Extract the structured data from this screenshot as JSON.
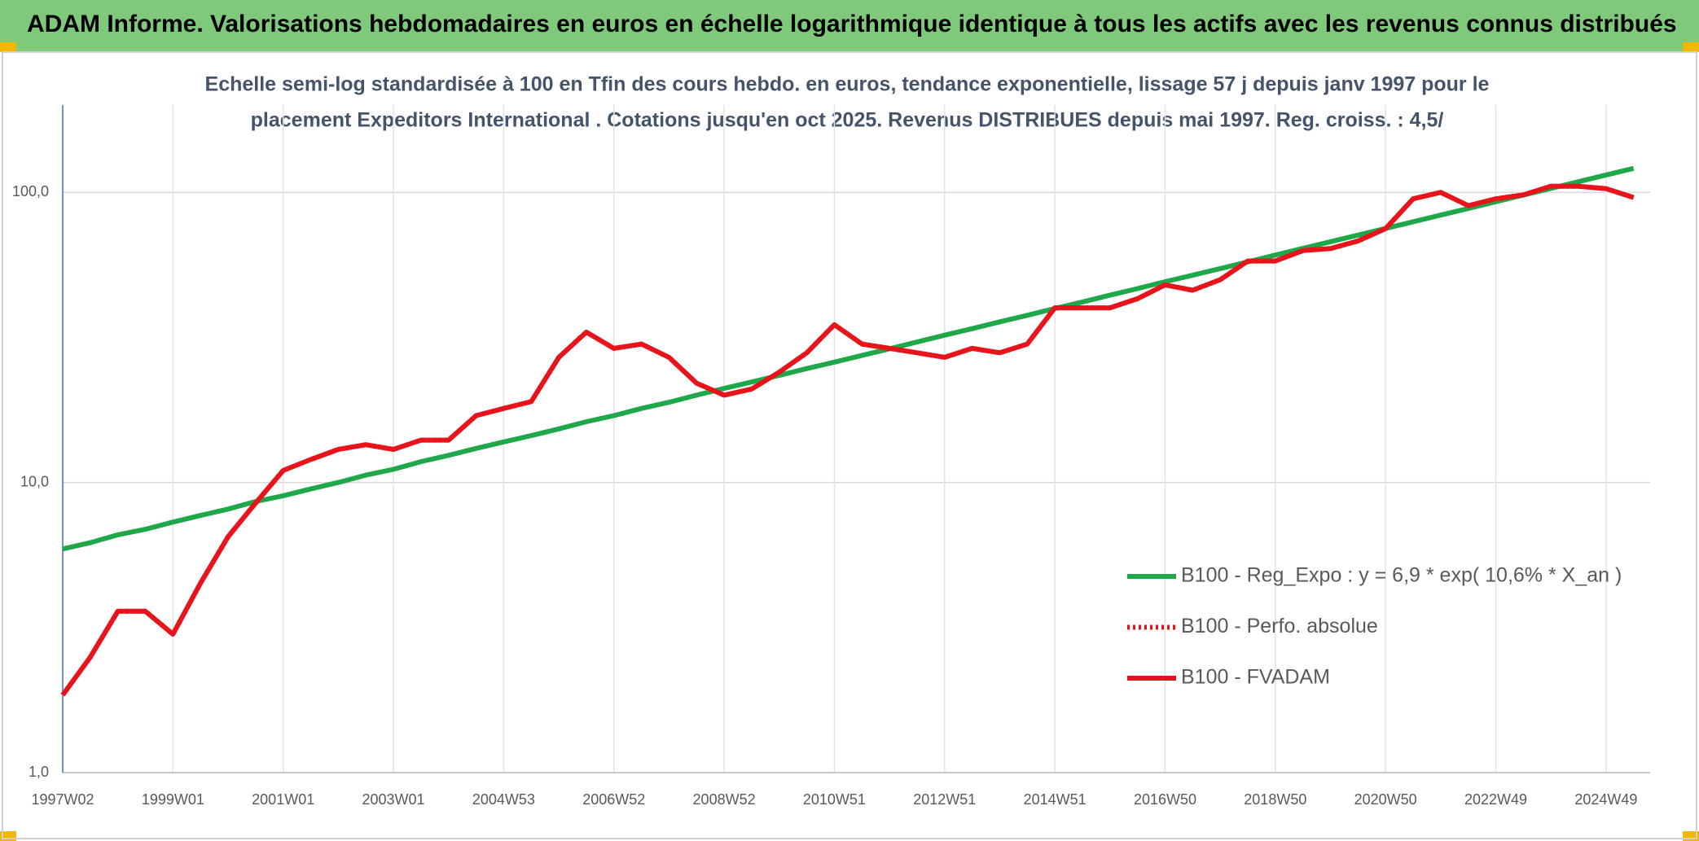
{
  "header": {
    "title": "ADAM Informe. Valorisations hebdomadaires en euros en échelle logarithmique identique à tous les actifs avec les revenus connus distribués"
  },
  "chart_data": {
    "type": "line",
    "subtitle": [
      "Echelle semi-log standardisée à 100 en Tfin des cours hebdo. en euros, tendance exponentielle, lissage 57 j depuis janv 1997 pour le",
      "placement Expeditors International . Cotations jusqu'en oct 2025. Revenus DISTRIBUES depuis mai 1997. Reg. croiss. : 4,5/"
    ],
    "categories": [
      "1997W02",
      null,
      null,
      null,
      "1999W01",
      null,
      null,
      null,
      "2001W01",
      null,
      null,
      null,
      "2003W01",
      null,
      null,
      null,
      "2004W53",
      null,
      null,
      null,
      "2006W52",
      null,
      null,
      null,
      "2008W52",
      null,
      null,
      null,
      "2010W51",
      null,
      null,
      null,
      "2012W51",
      null,
      null,
      null,
      "2014W51",
      null,
      null,
      null,
      "2016W50",
      null,
      null,
      null,
      "2018W50",
      null,
      null,
      null,
      "2020W50",
      null,
      null,
      null,
      "2022W49",
      null,
      null,
      null,
      "2024W49",
      null
    ],
    "log_scale": true,
    "grid": true,
    "ylim": [
      1,
      200
    ],
    "yticks": [
      {
        "value": 1,
        "label": "1,0"
      },
      {
        "value": 10,
        "label": "10,0"
      },
      {
        "value": 100,
        "label": "100,0"
      }
    ],
    "series": [
      {
        "name": "B100 - Reg_Expo : y = 6,9 * exp( 10,6% *  X_an )",
        "color": "#1fa84a",
        "dash": "solid",
        "values": [
          5.9,
          6.2,
          6.6,
          6.9,
          7.3,
          7.7,
          8.1,
          8.6,
          9.0,
          9.5,
          10.0,
          10.6,
          11.1,
          11.8,
          12.4,
          13.1,
          13.8,
          14.5,
          15.3,
          16.2,
          17.0,
          18.0,
          18.9,
          20.0,
          21.1,
          22.2,
          23.4,
          24.7,
          26.0,
          27.4,
          28.9,
          30.5,
          32.2,
          33.9,
          35.8,
          37.7,
          39.8,
          41.9,
          44.2,
          46.6,
          49.2,
          51.8,
          54.6,
          57.6,
          60.8,
          64.1,
          67.6,
          71.2,
          75.1,
          79.2,
          83.5,
          88.0,
          92.8,
          97.9,
          103.2,
          108.8,
          114.8,
          121.0
        ]
      },
      {
        "name": "B100 - Perfo. absolue",
        "color": "#e8141c",
        "dash": "dotted",
        "values": [
          1.85,
          2.5,
          3.6,
          3.6,
          3.0,
          4.5,
          6.5,
          8.5,
          11,
          12,
          13,
          13.5,
          13,
          14,
          14,
          17,
          18,
          19,
          27,
          33,
          29,
          30,
          27,
          22,
          20,
          21,
          24,
          28,
          35,
          30,
          29,
          28,
          27,
          29,
          28,
          30,
          40,
          40,
          40,
          43,
          48,
          46,
          50,
          58,
          58,
          63,
          64,
          68,
          75,
          95,
          100,
          90,
          95,
          98,
          105,
          105,
          103,
          96
        ]
      },
      {
        "name": "B100 - FVADAM",
        "color": "#e8141c",
        "dash": "solid",
        "values": [
          1.85,
          2.5,
          3.6,
          3.6,
          3.0,
          4.5,
          6.5,
          8.5,
          11,
          12,
          13,
          13.5,
          13,
          14,
          14,
          17,
          18,
          19,
          27,
          33,
          29,
          30,
          27,
          22,
          20,
          21,
          24,
          28,
          35,
          30,
          29,
          28,
          27,
          29,
          28,
          30,
          40,
          40,
          40,
          43,
          48,
          46,
          50,
          58,
          58,
          63,
          64,
          68,
          75,
          95,
          100,
          90,
          95,
          98,
          105,
          105,
          103,
          96
        ]
      }
    ]
  }
}
